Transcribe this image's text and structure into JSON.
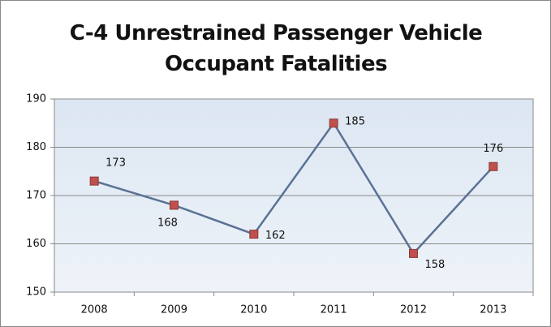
{
  "chart_data": {
    "type": "line",
    "title": "C-4 Unrestrained Passenger Vehicle Occupant Fatalities",
    "categories": [
      "2008",
      "2009",
      "2010",
      "2011",
      "2012",
      "2013"
    ],
    "values": [
      173,
      168,
      162,
      185,
      158,
      176
    ],
    "color": "#5a7294",
    "marker_color": "#c0504d",
    "ylim": [
      150,
      190
    ],
    "yticks": [
      150,
      160,
      170,
      180,
      190
    ],
    "grid": true
  }
}
